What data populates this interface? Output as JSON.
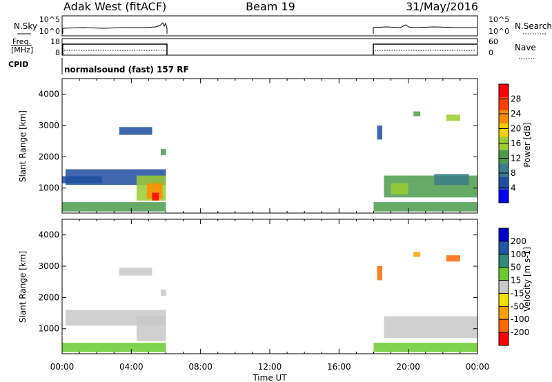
{
  "header": {
    "radar": "Adak West (fitACF)",
    "beam": "Beam 19",
    "date": "31/May/2016"
  },
  "top_panels": {
    "nsky_label": "N.Sky",
    "nsearch_label": "N.Search",
    "nsky_ticks": [
      "10^5",
      "10^0"
    ],
    "nsearch_ticks": [
      "10^5",
      "10^0"
    ],
    "freq_label": "Freq.",
    "freq_unit": "[MHz]",
    "freq_ticks": [
      "18",
      "8"
    ],
    "nave_label": "Nave",
    "nave_ticks": [
      "60",
      "0"
    ],
    "cpid_label": "CPID",
    "cpid_text": "normalsound (fast) 157 RF"
  },
  "colors": {
    "power_scale": [
      "#0000ff",
      "#1f4ea0",
      "#3c7d8a",
      "#4c9a4c",
      "#9acd32",
      "#f0d000",
      "#ff8c00",
      "#ff4000",
      "#ff0000"
    ],
    "velocity_scale": [
      "#0000cc",
      "#1f56a8",
      "#2f8a78",
      "#6acb30",
      "#c8c8c8",
      "#f2e200",
      "#f8a000",
      "#ff6a00",
      "#ff0000"
    ]
  },
  "chart_data": [
    {
      "type": "heatmap",
      "name": "power",
      "xlabel": "",
      "ylabel": "Slant Range [km]",
      "xlim": [
        "00:00",
        "24:00"
      ],
      "ylim": [
        200,
        4500
      ],
      "yticks": [
        "1000",
        "2000",
        "3000",
        "4000"
      ],
      "colorbar": {
        "label": "Power [dB]",
        "ticks": [
          "4",
          "8",
          "12",
          "16",
          "20",
          "24",
          "28"
        ],
        "range": [
          0,
          30
        ]
      },
      "regions": [
        {
          "t0": 0.0,
          "t1": 6.0,
          "r0": 250,
          "r1": 550,
          "level": 10
        },
        {
          "t0": 0.2,
          "t1": 6.0,
          "r0": 1100,
          "r1": 1600,
          "level": 6
        },
        {
          "t0": 0.0,
          "t1": 2.3,
          "r0": 1150,
          "r1": 1380,
          "level": 5
        },
        {
          "t0": 4.3,
          "t1": 6.0,
          "r0": 600,
          "r1": 1400,
          "level": 14
        },
        {
          "t0": 4.9,
          "t1": 5.8,
          "r0": 650,
          "r1": 1150,
          "level": 22
        },
        {
          "t0": 5.2,
          "t1": 5.6,
          "r0": 600,
          "r1": 850,
          "level": 28
        },
        {
          "t0": 3.3,
          "t1": 5.2,
          "r0": 2700,
          "r1": 2950,
          "level": 5
        },
        {
          "t0": 5.7,
          "t1": 6.0,
          "r0": 2050,
          "r1": 2250,
          "level": 13
        },
        {
          "t0": 18.0,
          "t1": 24.0,
          "r0": 250,
          "r1": 550,
          "level": 10
        },
        {
          "t0": 18.6,
          "t1": 24.0,
          "r0": 700,
          "r1": 1400,
          "level": 12
        },
        {
          "t0": 19.0,
          "t1": 20.0,
          "r0": 800,
          "r1": 1150,
          "level": 15
        },
        {
          "t0": 21.5,
          "t1": 23.5,
          "r0": 1100,
          "r1": 1450,
          "level": 7
        },
        {
          "t0": 20.3,
          "t1": 20.7,
          "r0": 3300,
          "r1": 3450,
          "level": 13
        },
        {
          "t0": 22.2,
          "t1": 23.0,
          "r0": 3150,
          "r1": 3350,
          "level": 15
        },
        {
          "t0": 18.2,
          "t1": 18.5,
          "r0": 2550,
          "r1": 3000,
          "level": 6
        }
      ]
    },
    {
      "type": "heatmap",
      "name": "velocity",
      "xlabel": "Time UT",
      "ylabel": "Slant Range [km]",
      "xlim": [
        "00:00",
        "24:00"
      ],
      "ylim": [
        200,
        4500
      ],
      "yticks": [
        "1000",
        "2000",
        "3000",
        "4000"
      ],
      "xticks": [
        "00:00",
        "04:00",
        "08:00",
        "12:00",
        "16:00",
        "20:00",
        "00:00"
      ],
      "colorbar": {
        "label": "Velocity [m s-1]",
        "ticks": [
          "200",
          "100",
          "50",
          "15",
          "-15",
          "-50",
          "-100",
          "-200"
        ],
        "range": [
          -250,
          250
        ]
      },
      "regions": [
        {
          "t0": 0.0,
          "t1": 6.0,
          "r0": 250,
          "r1": 550,
          "level": 30
        },
        {
          "t0": 0.2,
          "t1": 6.0,
          "r0": 1100,
          "r1": 1600,
          "level": 0
        },
        {
          "t0": 4.3,
          "t1": 6.0,
          "r0": 600,
          "r1": 1400,
          "level": 0
        },
        {
          "t0": 3.3,
          "t1": 5.2,
          "r0": 2700,
          "r1": 2950,
          "level": -20
        },
        {
          "t0": 5.7,
          "t1": 6.0,
          "r0": 2050,
          "r1": 2250,
          "level": 0
        },
        {
          "t0": 18.0,
          "t1": 24.0,
          "r0": 250,
          "r1": 550,
          "level": 30
        },
        {
          "t0": 18.6,
          "t1": 24.0,
          "r0": 700,
          "r1": 1400,
          "level": 0
        },
        {
          "t0": 20.3,
          "t1": 20.7,
          "r0": 3300,
          "r1": 3450,
          "level": -120
        },
        {
          "t0": 22.2,
          "t1": 23.0,
          "r0": 3150,
          "r1": 3350,
          "level": -150
        },
        {
          "t0": 18.2,
          "t1": 18.5,
          "r0": 2550,
          "r1": 3000,
          "level": -180
        }
      ]
    }
  ]
}
